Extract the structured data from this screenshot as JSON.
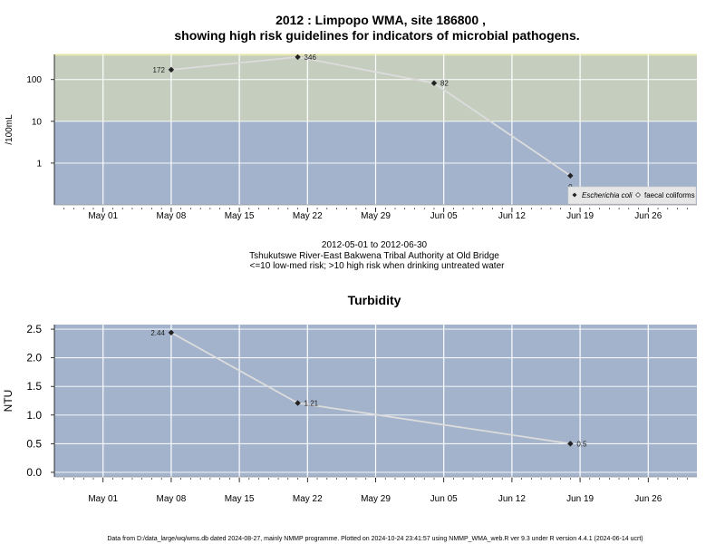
{
  "chart_data": [
    {
      "type": "line",
      "title_line1": "2012 : Limpopo WMA, site 186800 ,",
      "title_line2": "showing high risk guidelines for indicators of microbial pathogens.",
      "ylabel": "/100mL",
      "y_scale": "log",
      "ylim": [
        0.1,
        400
      ],
      "y_ticks": [
        {
          "value": 1,
          "label": "1"
        },
        {
          "value": 10,
          "label": "10"
        },
        {
          "value": 100,
          "label": "100"
        }
      ],
      "risk_threshold": 10,
      "colors": {
        "high_risk_band": "#c5cdbf",
        "low_risk_band": "#a3b3cc",
        "line": "#dcdcdc",
        "marker": "#222222",
        "top_edge": "#e5e5a8"
      },
      "x_ticks": [
        {
          "date": "2012-05-01",
          "label": "May 01"
        },
        {
          "date": "2012-05-08",
          "label": "May 08"
        },
        {
          "date": "2012-05-15",
          "label": "May 15"
        },
        {
          "date": "2012-05-22",
          "label": "May 22"
        },
        {
          "date": "2012-05-29",
          "label": "May 29"
        },
        {
          "date": "2012-06-05",
          "label": "Jun 05"
        },
        {
          "date": "2012-06-12",
          "label": "Jun 12"
        },
        {
          "date": "2012-06-19",
          "label": "Jun 19"
        },
        {
          "date": "2012-06-26",
          "label": "Jun 26"
        }
      ],
      "series": [
        {
          "name": "Escherichia coli",
          "points": [
            {
              "x": "2012-05-08",
              "y": 172,
              "label": "172"
            },
            {
              "x": "2012-05-21",
              "y": 346,
              "label": "346"
            },
            {
              "x": "2012-06-04",
              "y": 82,
              "label": "82"
            },
            {
              "x": "2012-06-18",
              "y": 0.5,
              "label": "0"
            }
          ]
        }
      ],
      "legend": [
        {
          "label": "Escherichia coli",
          "marker": "filled-diamond"
        },
        {
          "label": "faecal coliforms",
          "marker": "open-diamond"
        }
      ],
      "legend_position": "bottom-right"
    },
    {
      "type": "line",
      "title": "Turbidity",
      "ylabel": "NTU",
      "ylim": [
        -0.08,
        2.58
      ],
      "y_ticks": [
        {
          "value": 0,
          "label": "0.0"
        },
        {
          "value": 0.5,
          "label": "0.5"
        },
        {
          "value": 1,
          "label": "1.0"
        },
        {
          "value": 1.5,
          "label": "1.5"
        },
        {
          "value": 2,
          "label": "2.0"
        },
        {
          "value": 2.5,
          "label": "2.5"
        }
      ],
      "colors": {
        "background": "#a3b3cc",
        "line": "#dcdcdc",
        "marker": "#222222"
      },
      "x_ticks": [
        {
          "date": "2012-05-01",
          "label": "May 01"
        },
        {
          "date": "2012-05-08",
          "label": "May 08"
        },
        {
          "date": "2012-05-15",
          "label": "May 15"
        },
        {
          "date": "2012-05-22",
          "label": "May 22"
        },
        {
          "date": "2012-05-29",
          "label": "May 29"
        },
        {
          "date": "2012-06-05",
          "label": "Jun 05"
        },
        {
          "date": "2012-06-12",
          "label": "Jun 12"
        },
        {
          "date": "2012-06-19",
          "label": "Jun 19"
        },
        {
          "date": "2012-06-26",
          "label": "Jun 26"
        }
      ],
      "series": [
        {
          "points": [
            {
              "x": "2012-05-08",
              "y": 2.44,
              "label": "2.44"
            },
            {
              "x": "2012-05-21",
              "y": 1.21,
              "label": "1.21"
            },
            {
              "x": "2012-06-18",
              "y": 0.5,
              "label": "0.5"
            }
          ]
        }
      ]
    }
  ],
  "subtitle": {
    "date_range": "2012-05-01 to 2012-06-30",
    "location": "Tshukutswe River-East Bakwena Tribal Authority at Old Bridge",
    "risk_note": "<=10 low-med risk; >10 high risk when drinking untreated water"
  },
  "footer": "Data from D:/data_large/wq/wms.db dated 2024-08-27, mainly NMMP programme. Plotted on 2024-10-24 23:41:57 using NMMP_WMA_web.R ver 9.3 under R version 4.4.1 (2024-06-14 ucrt)"
}
